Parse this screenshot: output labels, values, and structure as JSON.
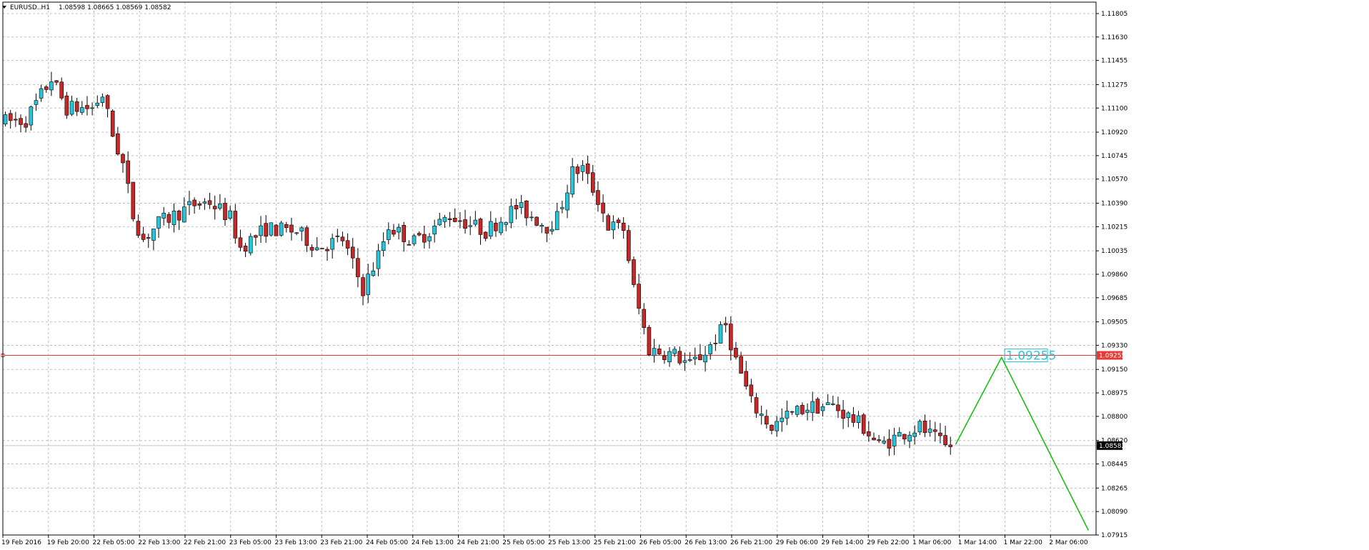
{
  "header": {
    "symbol_label": "EURUSD..H1",
    "ohlc_text": "1.08598 1.08665 1.08569 1.08582"
  },
  "colors": {
    "background": "#ffffff",
    "grid": "#c0c0c0",
    "bull_body": "#26c6da",
    "bear_body": "#c62828",
    "wick": "#000000",
    "level_line": "#e53935",
    "forecast_line": "#00c400",
    "level_label": "#26c6da"
  },
  "chart_data": {
    "type": "candlestick",
    "title": "EURUSD..H1",
    "ylim": [
      1.07915,
      1.1189
    ],
    "grid": true,
    "price_axis_ticks": [
      "1.11805",
      "1.11630",
      "1.11455",
      "1.11275",
      "1.11100",
      "1.10920",
      "1.10745",
      "1.10570",
      "1.10390",
      "1.10215",
      "1.10035",
      "1.09860",
      "1.09685",
      "1.09505",
      "1.09330",
      "1.09150",
      "1.08975",
      "1.08800",
      "1.08620",
      "1.08445",
      "1.08265",
      "1.08090",
      "1.07915"
    ],
    "time_axis_labels": [
      "19 Feb 2016",
      "19 Feb 20:00",
      "22 Feb 05:00",
      "22 Feb 13:00",
      "22 Feb 21:00",
      "23 Feb 05:00",
      "23 Feb 13:00",
      "23 Feb 21:00",
      "24 Feb 05:00",
      "24 Feb 13:00",
      "24 Feb 21:00",
      "25 Feb 05:00",
      "25 Feb 13:00",
      "25 Feb 21:00",
      "26 Feb 05:00",
      "26 Feb 13:00",
      "26 Feb 21:00",
      "29 Feb 06:00",
      "29 Feb 14:00",
      "29 Feb 22:00",
      "1 Mar 06:00",
      "1 Mar 14:00",
      "1 Mar 22:00",
      "2 Mar 06:00"
    ],
    "level": {
      "value": 1.09255,
      "label": "1.09255",
      "axis_label": "1.09255"
    },
    "current_price": {
      "value": 1.08582,
      "label": "1.08582"
    },
    "forecast_path": [
      {
        "bar": 186,
        "price": 1.0859
      },
      {
        "bar": 195,
        "price": 1.0924
      },
      {
        "bar": 212,
        "price": 1.0795
      }
    ],
    "anchors": [
      {
        "bar": 0,
        "price": 1.11
      },
      {
        "bar": 4,
        "price": 1.1101
      },
      {
        "bar": 9,
        "price": 1.1132
      },
      {
        "bar": 12,
        "price": 1.111
      },
      {
        "bar": 17,
        "price": 1.111
      },
      {
        "bar": 19,
        "price": 1.112
      },
      {
        "bar": 21,
        "price": 1.109
      },
      {
        "bar": 23,
        "price": 1.1068
      },
      {
        "bar": 25,
        "price": 1.103
      },
      {
        "bar": 27,
        "price": 1.1012
      },
      {
        "bar": 30,
        "price": 1.1024
      },
      {
        "bar": 37,
        "price": 1.1038
      },
      {
        "bar": 40,
        "price": 1.104
      },
      {
        "bar": 44,
        "price": 1.1028
      },
      {
        "bar": 46,
        "price": 1.1006
      },
      {
        "bar": 51,
        "price": 1.102
      },
      {
        "bar": 57,
        "price": 1.1018
      },
      {
        "bar": 61,
        "price": 1.1006
      },
      {
        "bar": 66,
        "price": 1.1012
      },
      {
        "bar": 70,
        "price": 1.0975
      },
      {
        "bar": 73,
        "price": 1.1
      },
      {
        "bar": 75,
        "price": 1.1022
      },
      {
        "bar": 80,
        "price": 1.101
      },
      {
        "bar": 87,
        "price": 1.103
      },
      {
        "bar": 90,
        "price": 1.1025
      },
      {
        "bar": 94,
        "price": 1.1018
      },
      {
        "bar": 100,
        "price": 1.1036
      },
      {
        "bar": 102,
        "price": 1.1032
      },
      {
        "bar": 106,
        "price": 1.1022
      },
      {
        "bar": 108,
        "price": 1.1028
      },
      {
        "bar": 111,
        "price": 1.1062
      },
      {
        "bar": 113,
        "price": 1.1065
      },
      {
        "bar": 116,
        "price": 1.1042
      },
      {
        "bar": 118,
        "price": 1.1022
      },
      {
        "bar": 121,
        "price": 1.102
      },
      {
        "bar": 123,
        "price": 1.0975
      },
      {
        "bar": 126,
        "price": 1.093
      },
      {
        "bar": 131,
        "price": 1.0926
      },
      {
        "bar": 134,
        "price": 1.0918
      },
      {
        "bar": 137,
        "price": 1.0928
      },
      {
        "bar": 141,
        "price": 1.0948
      },
      {
        "bar": 143,
        "price": 1.0922
      },
      {
        "bar": 146,
        "price": 1.089
      },
      {
        "bar": 150,
        "price": 1.0872
      },
      {
        "bar": 153,
        "price": 1.088
      },
      {
        "bar": 157,
        "price": 1.0887
      },
      {
        "bar": 162,
        "price": 1.0888
      },
      {
        "bar": 165,
        "price": 1.088
      },
      {
        "bar": 168,
        "price": 1.0872
      },
      {
        "bar": 171,
        "price": 1.0858
      },
      {
        "bar": 173,
        "price": 1.0862
      },
      {
        "bar": 176,
        "price": 1.0868
      },
      {
        "bar": 179,
        "price": 1.0872
      },
      {
        "bar": 181,
        "price": 1.0866
      },
      {
        "bar": 184,
        "price": 1.0857
      },
      {
        "bar": 185,
        "price": 1.0858
      }
    ],
    "bar_count": 186,
    "x_axis_bars": 214
  }
}
